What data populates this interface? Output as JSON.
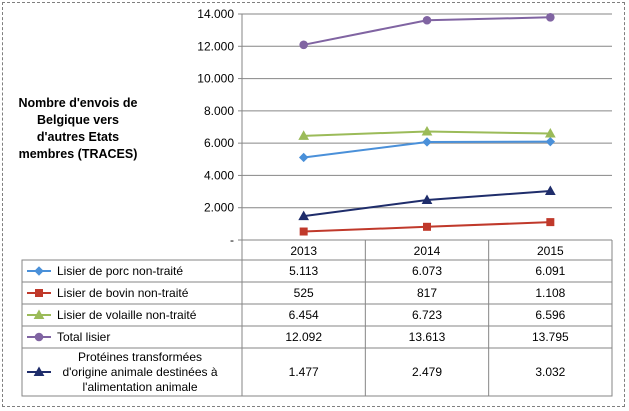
{
  "chart_data": {
    "type": "line",
    "ylabel": "Nombre d'envois de Belgique vers d'autres Etats membres (TRACES)",
    "xlabel": "",
    "categories": [
      "2013",
      "2014",
      "2015"
    ],
    "ylim": [
      0,
      14000
    ],
    "ytick_labels": [
      "-",
      "2.000",
      "4.000",
      "6.000",
      "8.000",
      "10.000",
      "12.000",
      "14.000"
    ],
    "grid": true,
    "legend": "data-table",
    "series": [
      {
        "name": "Lisier de porc non-traité",
        "values": [
          5113,
          6073,
          6091
        ],
        "display": [
          "5.113",
          "6.073",
          "6.091"
        ],
        "color": "#4A90D9",
        "marker": "diamond"
      },
      {
        "name": "Lisier de bovin non-traité",
        "values": [
          525,
          817,
          1108
        ],
        "display": [
          "525",
          "817",
          "1.108"
        ],
        "color": "#C0392B",
        "marker": "square"
      },
      {
        "name": "Lisier de volaille non-traité",
        "values": [
          6454,
          6723,
          6596
        ],
        "display": [
          "6.454",
          "6.723",
          "6.596"
        ],
        "color": "#9BBB59",
        "marker": "triangle"
      },
      {
        "name": "Total lisier",
        "values": [
          12092,
          13613,
          13795
        ],
        "display": [
          "12.092",
          "13.613",
          "13.795"
        ],
        "color": "#8064A2",
        "marker": "circle"
      },
      {
        "name": "Protéines transformées d'origine animale destinées à l'alimentation animale",
        "lines": [
          "Protéines transformées",
          "d'origine animale destinées à",
          "l'alimentation animale"
        ],
        "values": [
          1477,
          2479,
          3032
        ],
        "display": [
          "1.477",
          "2.479",
          "3.032"
        ],
        "color": "#1F2D6B",
        "marker": "triangle"
      }
    ]
  }
}
